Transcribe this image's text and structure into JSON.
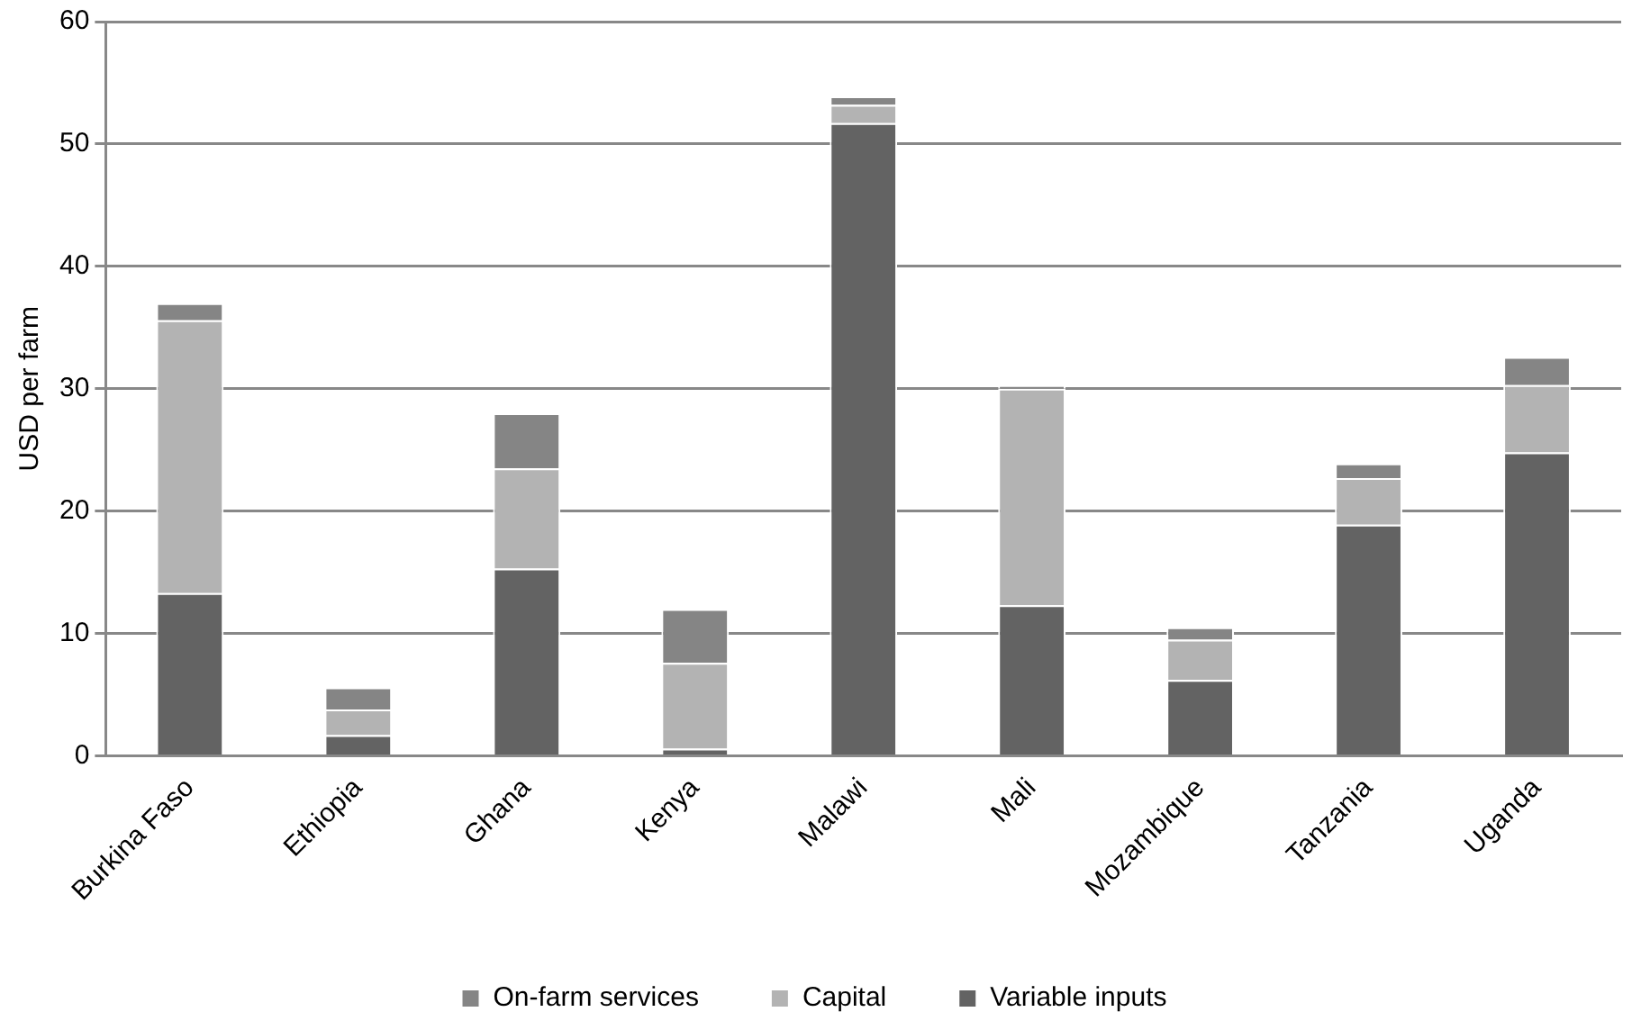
{
  "chart_data": {
    "type": "bar",
    "stacked": true,
    "ylabel": "USD per farm",
    "categories": [
      "Burkina Faso",
      "Ethiopia",
      "Ghana",
      "Kenya",
      "Malawi",
      "Mali",
      "Mozambique",
      "Tanzania",
      "Uganda"
    ],
    "series": [
      {
        "name": "Variable inputs",
        "color": "#636363",
        "values": [
          13.3,
          1.7,
          15.3,
          0.6,
          51.7,
          12.3,
          6.2,
          18.9,
          24.8
        ]
      },
      {
        "name": "Capital",
        "color": "#b3b3b3",
        "values": [
          22.3,
          2.1,
          8.2,
          7.0,
          1.5,
          17.7,
          3.3,
          3.8,
          5.5
        ]
      },
      {
        "name": "On-farm services",
        "color": "#858585",
        "values": [
          1.4,
          1.8,
          4.5,
          4.4,
          0.7,
          0.3,
          1.0,
          1.2,
          2.3
        ]
      }
    ],
    "ylim": [
      0,
      60
    ],
    "yticks": [
      0,
      10,
      20,
      30,
      40,
      50,
      60
    ],
    "grid": "y",
    "legend": "bottom"
  }
}
